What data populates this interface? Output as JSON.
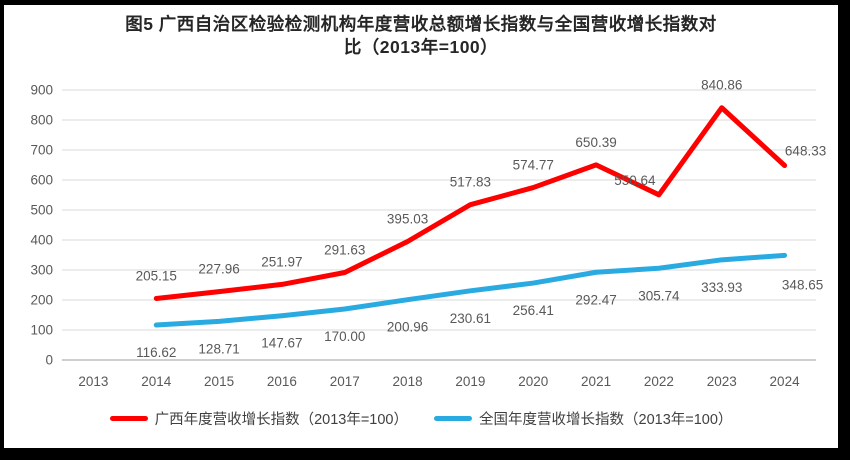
{
  "title": {
    "full": "图5 广西自治区检验检测机构年度营收总额增长指数与全国营收增长指数对比（2013年=100）",
    "lines": [
      "图5  广西自治区检验检测机构年度营收总额增长指数与全国营收增长指数对",
      "比（2013年=100）"
    ]
  },
  "chart_data": {
    "type": "line",
    "categories": [
      "2013",
      "2014",
      "2015",
      "2016",
      "2017",
      "2018",
      "2019",
      "2020",
      "2021",
      "2022",
      "2023",
      "2024"
    ],
    "series": [
      {
        "name": "广西年度营收增长指数（2013年=100）",
        "color": "#FF0000",
        "values": [
          null,
          205.15,
          227.96,
          251.97,
          291.63,
          395.03,
          517.83,
          574.77,
          650.39,
          550.64,
          840.86,
          648.33
        ]
      },
      {
        "name": "全国年度营收增长指数（2013年=100）",
        "color": "#29ABE2",
        "values": [
          null,
          116.62,
          128.71,
          147.67,
          170.0,
          200.96,
          230.61,
          256.41,
          292.47,
          305.74,
          333.93,
          348.65
        ]
      }
    ],
    "xlabel": "",
    "ylabel": "",
    "ylim": [
      0,
      900
    ],
    "ytick_step": 100,
    "yticks": [
      0,
      100,
      200,
      300,
      400,
      500,
      600,
      700,
      800,
      900
    ],
    "grid": true,
    "legend_position": "bottom",
    "data_labels": true
  },
  "colors": {
    "gridline": "#D9D9D9",
    "axis_line": "#BFBFBF",
    "tick_label": "#595959",
    "data_label": "#595959",
    "title": "#262626",
    "background": "#FFFFFF",
    "frame_border": "#000000"
  }
}
